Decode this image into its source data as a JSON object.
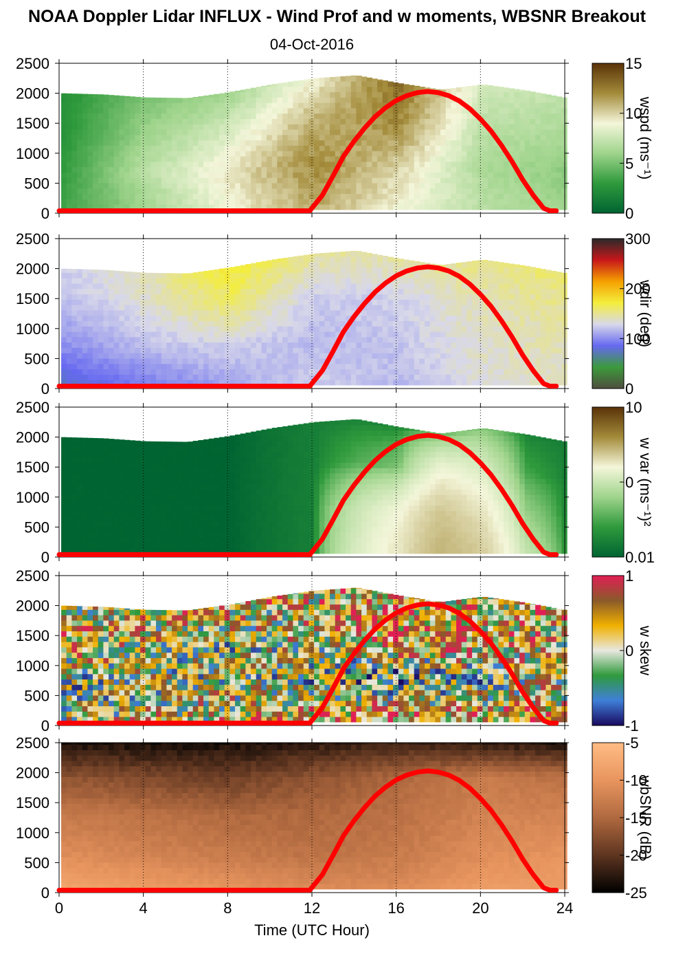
{
  "title": "NOAA Doppler Lidar INFLUX - Wind Prof and w moments, WBSNR Breakout",
  "subtitle": "04-Oct-2016",
  "chart_data": {
    "type": "heatmap",
    "xlabel": "Time (UTC Hour)",
    "xlim": [
      0,
      24
    ],
    "xticks": [
      0,
      4,
      8,
      12,
      16,
      20,
      24
    ],
    "xtick_labels": [
      "0",
      "4",
      "8",
      "12",
      "16",
      "20",
      "24"
    ],
    "ylim": [
      0,
      2500
    ],
    "yticks": [
      0,
      500,
      1000,
      1500,
      2000,
      2500
    ],
    "ytick_labels": [
      "0",
      "500",
      "1000",
      "1500",
      "2000",
      "2500"
    ],
    "grid": "vertical dotted lines at x ticks",
    "overlay_curve": {
      "color": "#ff0000",
      "x": [
        0,
        11.9,
        12.5,
        13,
        13.5,
        14,
        14.5,
        15,
        15.5,
        16,
        16.5,
        17,
        17.5,
        18,
        18.5,
        19,
        19.5,
        20,
        20.5,
        21,
        21.5,
        22,
        22.5,
        23,
        23.3,
        23.6
      ],
      "y": [
        40,
        40,
        300,
        620,
        950,
        1200,
        1420,
        1610,
        1760,
        1880,
        1960,
        2010,
        2030,
        2010,
        1960,
        1870,
        1740,
        1570,
        1370,
        1130,
        860,
        560,
        300,
        80,
        40,
        40
      ]
    },
    "panels": [
      {
        "name": "wspd",
        "colorbar_label": "wspd (ms⁻¹)",
        "colorbar_ticks": [
          "15",
          "10",
          "5",
          "0"
        ],
        "colorbar_colors": [
          "#5a3208",
          "#a38b3a",
          "#f4f6da",
          "#9fd48c",
          "#2f9a3c",
          "#006432"
        ],
        "x": [
          0,
          2,
          4,
          6,
          8,
          10,
          12,
          14,
          16,
          18,
          20,
          22,
          24
        ],
        "top_height": [
          2000,
          1980,
          1930,
          1920,
          2020,
          2150,
          2250,
          2300,
          2170,
          2060,
          2150,
          2050,
          1920
        ],
        "columns": [
          {
            "t": 0,
            "v": [
              3.5,
              3,
              2.5,
              2.5
            ]
          },
          {
            "t": 4,
            "v": [
              6,
              7,
              6,
              5
            ]
          },
          {
            "t": 8,
            "v": [
              9,
              9.5,
              8,
              6
            ]
          },
          {
            "t": 12,
            "v": [
              11,
              12,
              11,
              9
            ]
          },
          {
            "t": 16,
            "v": [
              9,
              10,
              12,
              13
            ]
          },
          {
            "t": 20,
            "v": [
              7,
              6.5,
              7,
              8
            ]
          },
          {
            "t": 24,
            "v": [
              6,
              5.5,
              6.5,
              7
            ]
          }
        ]
      },
      {
        "name": "wdir",
        "colorbar_label": "wdir (deg)",
        "colorbar_ticks": [
          "300",
          "200",
          "100",
          "0"
        ],
        "colorbar_colors": [
          "#2a2a2a",
          "#c7171a",
          "#f5a000",
          "#f4ee3c",
          "#d8d8ea",
          "#6669f0",
          "#3c9a3c",
          "#4e4e3e"
        ],
        "x": [
          0,
          2,
          4,
          6,
          8,
          10,
          12,
          14,
          16,
          18,
          20,
          22,
          24
        ],
        "top_height": [
          2000,
          1980,
          1930,
          1920,
          2020,
          2150,
          2250,
          2300,
          2170,
          2060,
          2150,
          2050,
          1920
        ],
        "columns": [
          {
            "t": 0,
            "v": [
              90,
              120,
              140,
              150
            ]
          },
          {
            "t": 4,
            "v": [
              110,
              140,
              160,
              170
            ]
          },
          {
            "t": 8,
            "v": [
              130,
              150,
              190,
              210
            ]
          },
          {
            "t": 12,
            "v": [
              150,
              140,
              150,
              180
            ]
          },
          {
            "t": 16,
            "v": [
              140,
              145,
              150,
              175
            ]
          },
          {
            "t": 20,
            "v": [
              160,
              165,
              170,
              185
            ]
          },
          {
            "t": 24,
            "v": [
              165,
              170,
              180,
              190
            ]
          }
        ]
      },
      {
        "name": "w var",
        "colorbar_label": "w var (ms⁻¹)²",
        "colorbar_ticks": [
          "10",
          "0",
          "0.01"
        ],
        "colorbar_colors": [
          "#5a3208",
          "#a38b3a",
          "#f4f6da",
          "#9fd48c",
          "#2f9a3c",
          "#006432"
        ],
        "x": [
          0,
          2,
          4,
          6,
          8,
          10,
          12,
          14,
          16,
          18,
          20,
          22,
          24
        ],
        "top_height": [
          2000,
          1980,
          1930,
          1920,
          2020,
          2150,
          2250,
          2300,
          2170,
          2060,
          2150,
          2050,
          1920
        ],
        "columns": [
          {
            "t": 0,
            "v": [
              0.01,
              0.01,
              0.01,
              0.01
            ]
          },
          {
            "t": 8,
            "v": [
              0.01,
              0.01,
              0.01,
              0.01
            ]
          },
          {
            "t": 12,
            "v": [
              0.02,
              0.02,
              0.02,
              0.02
            ]
          },
          {
            "t": 16,
            "v": [
              0.8,
              0.6,
              0.1,
              0.02
            ]
          },
          {
            "t": 18,
            "v": [
              1.5,
              1.2,
              0.6,
              0.05
            ]
          },
          {
            "t": 20,
            "v": [
              1.1,
              0.8,
              0.4,
              0.1
            ]
          },
          {
            "t": 22,
            "v": [
              0.3,
              0.15,
              0.05,
              0.02
            ]
          },
          {
            "t": 24,
            "v": [
              0.02,
              0.02,
              0.02,
              0.02
            ]
          }
        ]
      },
      {
        "name": "w skew",
        "colorbar_label": "w skew",
        "colorbar_ticks": [
          "1",
          "0",
          "-1"
        ],
        "colorbar_colors": [
          "#e01f55",
          "#8a5a2a",
          "#f0b000",
          "#e8e8e0",
          "#2f9a3c",
          "#3f7fd8",
          "#1a0a60"
        ],
        "x": [
          0,
          2,
          4,
          6,
          8,
          10,
          12,
          14,
          16,
          18,
          20,
          22,
          24
        ],
        "top_height": [
          2000,
          1980,
          1930,
          1920,
          2020,
          2150,
          2250,
          2300,
          2170,
          2060,
          2150,
          2050,
          1920
        ],
        "columns": [
          {
            "t": 0,
            "v": [
              0.1,
              -0.2,
              0.3,
              0.0
            ]
          },
          {
            "t": 8,
            "v": [
              0.2,
              0.0,
              -0.1,
              0.3
            ]
          },
          {
            "t": 16,
            "v": [
              0.6,
              -0.4,
              0.5,
              0.2
            ]
          },
          {
            "t": 24,
            "v": [
              0.3,
              0.1,
              0.2,
              0.3
            ]
          }
        ]
      },
      {
        "name": "wbSNR",
        "colorbar_label": "wbSNR (dB)",
        "colorbar_ticks": [
          "-5",
          "-10",
          "-15",
          "-20",
          "-25"
        ],
        "colorbar_colors": [
          "#ffbc84",
          "#e8955f",
          "#b0693f",
          "#5e3520",
          "#000000"
        ],
        "x": [
          0,
          2,
          4,
          6,
          8,
          10,
          12,
          14,
          16,
          18,
          20,
          22,
          24
        ],
        "top_height": [
          2500,
          2500,
          2500,
          2500,
          2500,
          2500,
          2500,
          2500,
          2500,
          2500,
          2500,
          2500,
          2500
        ],
        "columns": [
          {
            "t": 0,
            "v": [
              -8,
              -11,
              -13,
              -17,
              -24
            ]
          },
          {
            "t": 4,
            "v": [
              -9,
              -12,
              -14,
              -18,
              -24
            ]
          },
          {
            "t": 8,
            "v": [
              -10,
              -13,
              -15,
              -19,
              -24
            ]
          },
          {
            "t": 12,
            "v": [
              -11,
              -14,
              -15,
              -17,
              -23
            ]
          },
          {
            "t": 16,
            "v": [
              -11,
              -13,
              -14,
              -15,
              -22
            ]
          },
          {
            "t": 20,
            "v": [
              -9,
              -11,
              -12,
              -13,
              -23
            ]
          },
          {
            "t": 24,
            "v": [
              -9,
              -10,
              -12,
              -14,
              -24
            ]
          }
        ]
      }
    ]
  }
}
